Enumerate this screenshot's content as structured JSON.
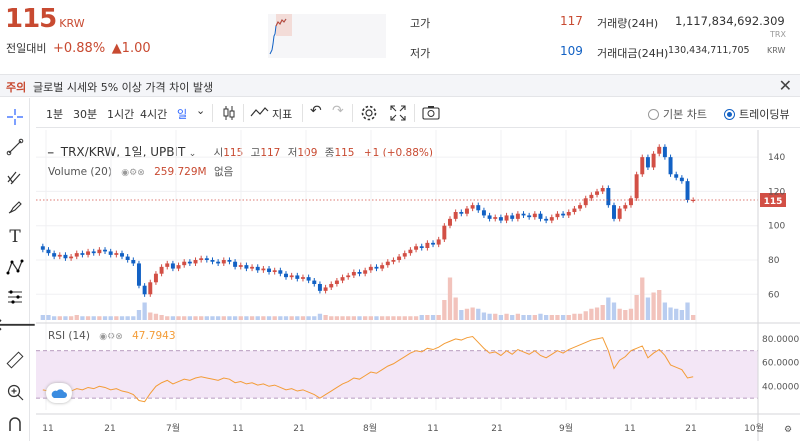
{
  "header": {
    "price": "115",
    "currency": "KRW",
    "change_label": "전일대비",
    "change_pct": "+0.88%",
    "change_abs": "▲1.00",
    "high_label": "고가",
    "high_value": "117",
    "low_label": "저가",
    "low_value": "109",
    "volume_label": "거래량(24H)",
    "volume_value": "1,117,834,692.309",
    "volume_unit": "TRX",
    "amount_label": "거래대금(24H)",
    "amount_value": "130,434,711,705",
    "amount_unit": "KRW"
  },
  "notice": {
    "tag": "주의",
    "message": "글로벌 시세와 5% 이상 가격 차이 발생"
  },
  "toolbar": {
    "interval_1m": "1분",
    "interval_30m": "30분",
    "interval_1h": "1시간",
    "interval_4h": "4시간",
    "interval_day": "일",
    "indicators": "지표",
    "basic_chart": "기본 차트",
    "trading_view": "트레이딩뷰"
  },
  "legend": {
    "symbol": "TRX/KRW, 1일, UPBIT",
    "open_label": "시",
    "open": "115",
    "high_label": "고",
    "high": "117",
    "low_label": "저",
    "low": "109",
    "close_label": "종",
    "close": "115",
    "change": "+1 (+0.88%)",
    "volume_label": "Volume (20)",
    "volume_value": "259.729M",
    "volume_extra": "없음",
    "rsi_label": "RSI (14)",
    "rsi_value": "47.7943"
  },
  "price_axis": [
    "140",
    "120",
    "100",
    "80",
    "60"
  ],
  "price_tag": "115",
  "rsi_axis": [
    "80.0000",
    "60.0000",
    "40.0000"
  ],
  "time_axis": [
    "11",
    "21",
    "7월",
    "11",
    "21",
    "8월",
    "11",
    "21",
    "9월",
    "11",
    "21",
    "10월"
  ],
  "chart_data": {
    "type": "candlestick",
    "candles": [
      [
        88,
        86
      ],
      [
        86,
        84
      ],
      [
        84,
        82
      ],
      [
        82,
        83
      ],
      [
        83,
        81
      ],
      [
        81,
        82
      ],
      [
        82,
        84
      ],
      [
        84,
        83
      ],
      [
        83,
        85
      ],
      [
        85,
        84
      ],
      [
        84,
        86
      ],
      [
        86,
        85
      ],
      [
        85,
        83
      ],
      [
        83,
        84
      ],
      [
        84,
        82
      ],
      [
        82,
        80
      ],
      [
        80,
        78
      ],
      [
        78,
        65
      ],
      [
        65,
        60
      ],
      [
        60,
        67
      ],
      [
        67,
        72
      ],
      [
        72,
        76
      ],
      [
        76,
        78
      ],
      [
        78,
        75
      ],
      [
        75,
        77
      ],
      [
        77,
        79
      ],
      [
        79,
        78
      ],
      [
        78,
        80
      ],
      [
        80,
        81
      ],
      [
        81,
        80
      ],
      [
        80,
        79
      ],
      [
        79,
        78
      ],
      [
        78,
        80
      ],
      [
        80,
        79
      ],
      [
        79,
        76
      ],
      [
        76,
        77
      ],
      [
        77,
        75
      ],
      [
        75,
        76
      ],
      [
        76,
        74
      ],
      [
        74,
        75
      ],
      [
        75,
        73
      ],
      [
        73,
        74
      ],
      [
        74,
        72
      ],
      [
        72,
        70
      ],
      [
        70,
        71
      ],
      [
        71,
        69
      ],
      [
        69,
        70
      ],
      [
        70,
        68
      ],
      [
        68,
        66
      ],
      [
        66,
        62
      ],
      [
        62,
        64
      ],
      [
        64,
        66
      ],
      [
        66,
        68
      ],
      [
        68,
        70
      ],
      [
        70,
        71
      ],
      [
        71,
        73
      ],
      [
        73,
        72
      ],
      [
        72,
        74
      ],
      [
        74,
        76
      ],
      [
        76,
        75
      ],
      [
        75,
        77
      ],
      [
        77,
        79
      ],
      [
        79,
        80
      ],
      [
        80,
        82
      ],
      [
        82,
        84
      ],
      [
        84,
        86
      ],
      [
        86,
        88
      ],
      [
        88,
        87
      ],
      [
        87,
        90
      ],
      [
        90,
        89
      ],
      [
        89,
        92
      ],
      [
        92,
        100
      ],
      [
        100,
        104
      ],
      [
        104,
        108
      ],
      [
        108,
        107
      ],
      [
        107,
        110
      ],
      [
        110,
        112
      ],
      [
        112,
        109
      ],
      [
        109,
        106
      ],
      [
        106,
        104
      ],
      [
        104,
        105
      ],
      [
        105,
        103
      ],
      [
        103,
        106
      ],
      [
        106,
        104
      ],
      [
        104,
        107
      ],
      [
        107,
        106
      ],
      [
        106,
        105
      ],
      [
        105,
        107
      ],
      [
        107,
        104
      ],
      [
        104,
        103
      ],
      [
        103,
        105
      ],
      [
        105,
        107
      ],
      [
        107,
        106
      ],
      [
        106,
        108
      ],
      [
        108,
        110
      ],
      [
        110,
        112
      ],
      [
        112,
        116
      ],
      [
        116,
        118
      ],
      [
        118,
        120
      ],
      [
        120,
        122
      ],
      [
        122,
        112
      ],
      [
        112,
        104
      ],
      [
        104,
        110
      ],
      [
        110,
        112
      ],
      [
        112,
        116
      ],
      [
        116,
        130
      ],
      [
        130,
        140
      ],
      [
        140,
        134
      ],
      [
        134,
        142
      ],
      [
        142,
        146
      ],
      [
        146,
        140
      ],
      [
        140,
        130
      ],
      [
        130,
        128
      ],
      [
        128,
        126
      ],
      [
        126,
        115
      ],
      [
        115,
        115
      ]
    ],
    "volume": [
      4,
      4,
      3,
      3,
      3,
      3,
      4,
      3,
      3,
      3,
      3,
      3,
      3,
      3,
      3,
      3,
      3,
      8,
      14,
      6,
      5,
      4,
      3,
      3,
      3,
      3,
      3,
      3,
      3,
      3,
      3,
      3,
      3,
      3,
      3,
      3,
      3,
      3,
      3,
      3,
      3,
      3,
      3,
      3,
      3,
      3,
      3,
      3,
      3,
      5,
      4,
      3,
      3,
      3,
      3,
      3,
      3,
      3,
      3,
      3,
      3,
      3,
      3,
      3,
      3,
      3,
      3,
      4,
      4,
      4,
      4,
      16,
      34,
      18,
      8,
      9,
      10,
      9,
      6,
      5,
      5,
      4,
      5,
      4,
      5,
      4,
      4,
      4,
      5,
      4,
      4,
      4,
      4,
      4,
      5,
      5,
      7,
      9,
      10,
      12,
      18,
      14,
      9,
      8,
      9,
      20,
      34,
      18,
      22,
      24,
      14,
      10,
      9,
      8,
      14,
      4
    ],
    "rsi": [
      37,
      36,
      36,
      37,
      36,
      36,
      38,
      37,
      39,
      38,
      40,
      39,
      37,
      38,
      36,
      35,
      33,
      28,
      27,
      34,
      40,
      43,
      45,
      42,
      44,
      46,
      45,
      47,
      48,
      47,
      46,
      45,
      47,
      46,
      43,
      44,
      42,
      43,
      41,
      42,
      40,
      41,
      39,
      37,
      38,
      36,
      37,
      35,
      33,
      30,
      33,
      36,
      39,
      42,
      44,
      47,
      46,
      49,
      52,
      51,
      54,
      57,
      59,
      62,
      65,
      68,
      70,
      69,
      72,
      71,
      73,
      76,
      78,
      80,
      79,
      81,
      82,
      77,
      72,
      68,
      69,
      66,
      70,
      67,
      71,
      69,
      67,
      70,
      66,
      64,
      67,
      70,
      68,
      71,
      73,
      75,
      77,
      79,
      80,
      81,
      70,
      55,
      62,
      65,
      70,
      72,
      74,
      64,
      68,
      71,
      66,
      58,
      56,
      54,
      47,
      48
    ],
    "price_range": [
      45,
      150
    ],
    "rsi_range": [
      20,
      90
    ],
    "rsi_bands": [
      70,
      30
    ]
  }
}
